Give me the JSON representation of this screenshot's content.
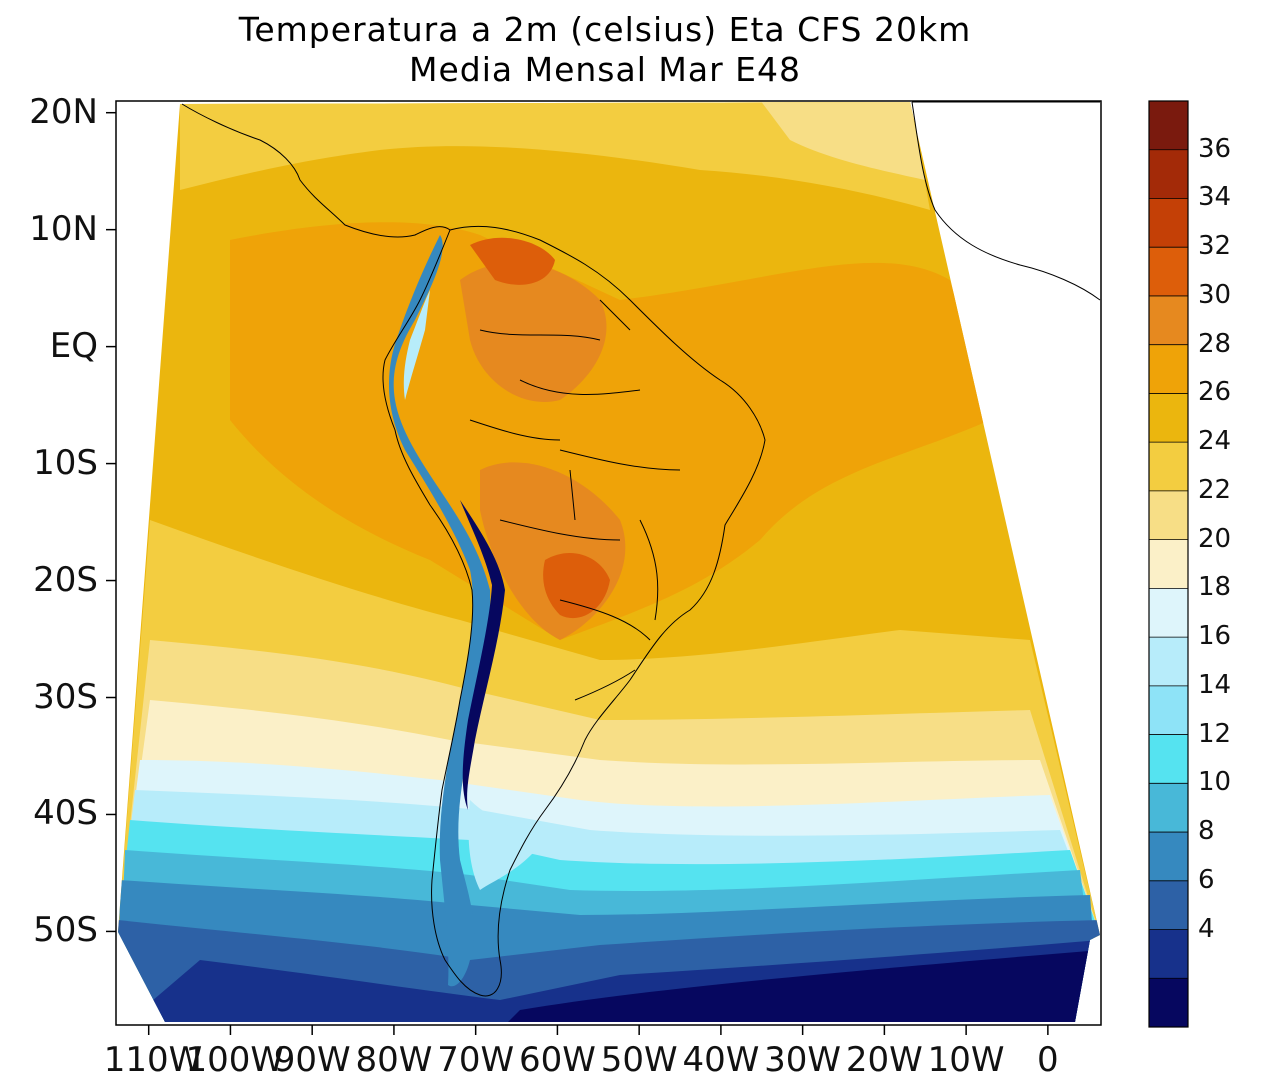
{
  "title": {
    "line1": "Temperatura a 2m (celsius) Eta CFS 20km",
    "line2": "Media Mensal Mar  E48"
  },
  "axes": {
    "lat_labels": [
      "20N",
      "10N",
      "EQ",
      "10S",
      "20S",
      "30S",
      "40S",
      "50S"
    ],
    "lon_labels": [
      "110W",
      "100W",
      "90W",
      "80W",
      "70W",
      "60W",
      "50W",
      "40W",
      "30W",
      "20W",
      "10W",
      "0"
    ]
  },
  "colorbar": {
    "labels": [
      "36",
      "34",
      "32",
      "30",
      "28",
      "26",
      "24",
      "22",
      "20",
      "18",
      "16",
      "14",
      "12",
      "10",
      "8",
      "6",
      "4"
    ],
    "colors": [
      "#7a1a0e",
      "#a32a08",
      "#c44006",
      "#dd5e0a",
      "#e6891f",
      "#efa308",
      "#ebb60e",
      "#f3cd40",
      "#f7de86",
      "#fbf0c8",
      "#def5fb",
      "#b7ecfa",
      "#8ee3f7",
      "#55e3f0",
      "#48b8d8",
      "#3689bf",
      "#2d61a6",
      "#17318b",
      "#06075f"
    ]
  },
  "chart_data": {
    "type": "heatmap",
    "title": "Temperatura a 2m (celsius) Eta CFS 20km",
    "subtitle": "Media Mensal Mar  E48",
    "variable": "2m temperature",
    "units": "celsius",
    "x_ticks": [
      "110W",
      "100W",
      "90W",
      "80W",
      "70W",
      "60W",
      "50W",
      "40W",
      "30W",
      "20W",
      "10W",
      "0"
    ],
    "y_ticks": [
      "20N",
      "10N",
      "EQ",
      "10S",
      "20S",
      "30S",
      "40S",
      "50S"
    ],
    "xlim": [
      -114,
      6.5
    ],
    "ylim": [
      -58,
      21
    ],
    "levels": [
      4,
      6,
      8,
      10,
      12,
      14,
      16,
      18,
      20,
      22,
      24,
      26,
      28,
      30,
      32,
      34,
      36
    ]
  }
}
